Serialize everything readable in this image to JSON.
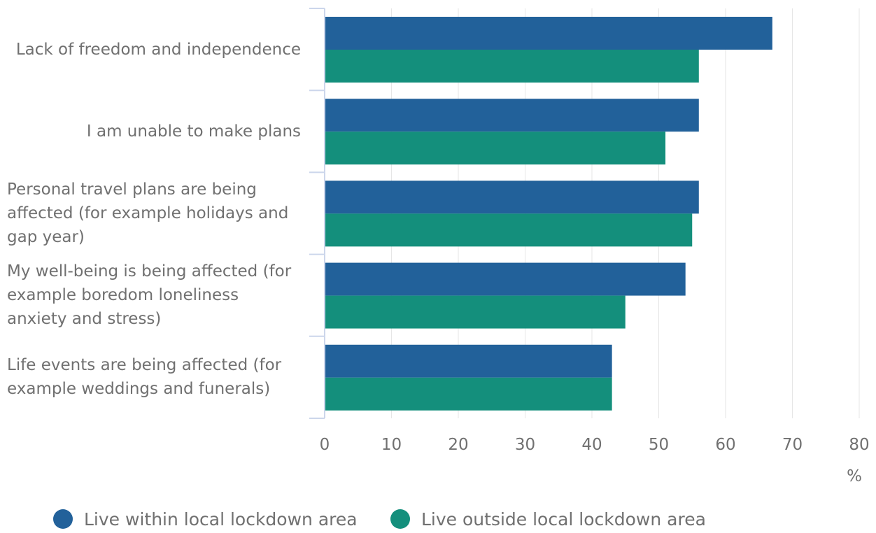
{
  "chart_data": {
    "type": "bar",
    "orientation": "horizontal",
    "categories": [
      "Lack of freedom and independence",
      "I am unable to make plans",
      "Personal travel plans are being affected (for example holidays and gap year)",
      "My well-being is being affected (for example boredom loneliness anxiety and stress)",
      "Life events are being affected (for example weddings and funerals)"
    ],
    "category_lines": [
      [
        "Lack of freedom and independence"
      ],
      [
        "I am unable to make plans"
      ],
      [
        "Personal travel plans are being",
        "affected (for example holidays and",
        "gap year)"
      ],
      [
        "My well-being is being affected (for",
        "example boredom loneliness",
        "anxiety and stress)"
      ],
      [
        "Life events are being affected (for",
        "example weddings and funerals)"
      ]
    ],
    "series": [
      {
        "name": "Live within local lockdown area",
        "color": "#22619a",
        "values": [
          67,
          56,
          56,
          54,
          43
        ]
      },
      {
        "name": "Live outside local lockdown area",
        "color": "#148f7c",
        "values": [
          56,
          51,
          55,
          45,
          43
        ]
      }
    ],
    "xlim": [
      0,
      80
    ],
    "xticks": [
      "0",
      "10",
      "20",
      "30",
      "40",
      "50",
      "60",
      "70",
      "80"
    ],
    "xlabel": "%",
    "grid": true,
    "legend_position": "bottom"
  }
}
